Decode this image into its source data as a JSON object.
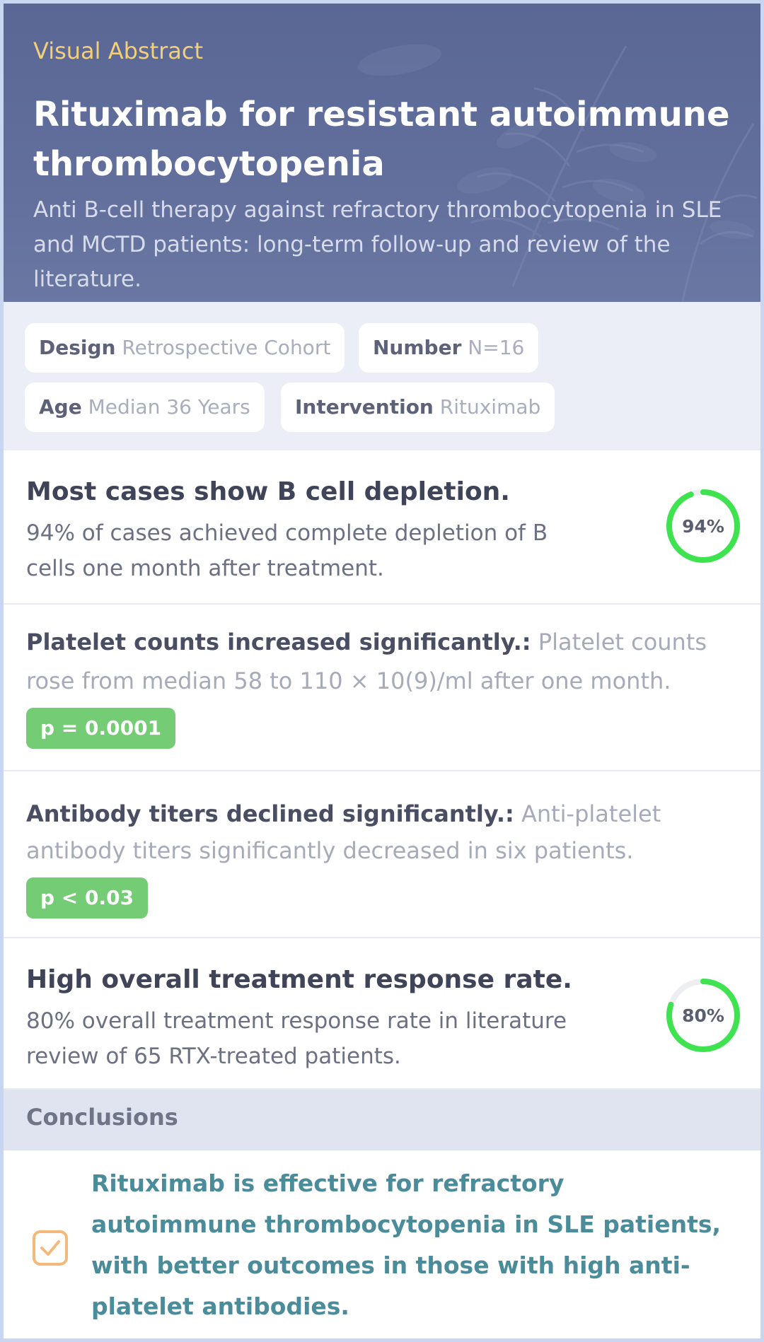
{
  "header": {
    "eyebrow": "Visual Abstract",
    "title": "Rituximab for resistant autoimmune thrombocytopenia",
    "subtitle": "Anti B-cell therapy against refractory thrombocytopenia in SLE and MCTD patients: long-term follow-up and review of the literature."
  },
  "tags": [
    {
      "key": "Design",
      "value": "Retrospective Cohort"
    },
    {
      "key": "Number",
      "value": "N=16"
    },
    {
      "key": "Age",
      "value": "Median 36 Years"
    },
    {
      "key": "Intervention",
      "value": "Rituximab"
    }
  ],
  "findings": [
    {
      "title": "Most cases show B cell depletion.",
      "description": "94% of cases achieved complete depletion of B cells one month after treatment.",
      "ring_label": "94%",
      "ring_percent": 94
    },
    {
      "title": "Platelet counts increased significantly.:",
      "description": "Platelet counts rose from median 58 to 110 × 10(9)/ml after one month.",
      "badge": "p = 0.0001"
    },
    {
      "title": "Antibody titers declined significantly.:",
      "description": "Anti-platelet antibody titers significantly decreased in six patients.",
      "badge": "p < 0.03"
    },
    {
      "title": "High overall treatment response rate.",
      "description": "80% overall treatment response rate in literature review of 65 RTX-treated patients.",
      "ring_label": "80%",
      "ring_percent": 80
    }
  ],
  "conclusions": {
    "heading": "Conclusions",
    "text": "Rituximab is effective for refractory autoimmune thrombocytopenia in SLE patients, with better outcomes in those with high anti-platelet antibodies."
  },
  "colors": {
    "header_bg": "#5f6c9a",
    "eyebrow": "#f4cf7a",
    "ring_green": "#3fe34f",
    "badge_green": "#74cd74",
    "conclusion_text": "#4b8c9b",
    "check_orange": "#f2b979"
  },
  "icons": {
    "conclusion": "checkbox-checked-icon"
  }
}
